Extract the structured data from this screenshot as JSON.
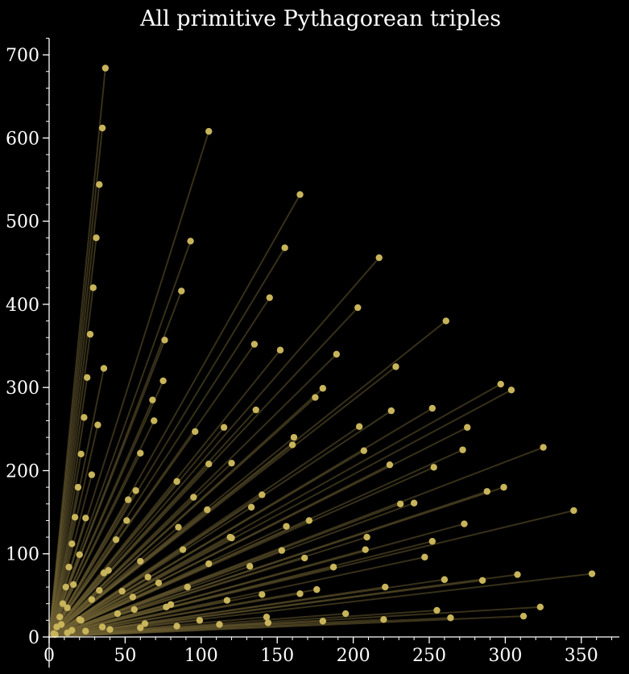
{
  "chart_data": {
    "type": "scatter",
    "title": "All primitive Pythagorean triples",
    "xlabel": "",
    "ylabel": "",
    "xlim": [
      0,
      375
    ],
    "ylim": [
      0,
      720
    ],
    "x_ticks": [
      0,
      50,
      100,
      150,
      200,
      250,
      300,
      350
    ],
    "y_ticks": [
      0,
      100,
      200,
      300,
      400,
      500,
      600,
      700
    ],
    "grid": false,
    "background": "#000000",
    "axis_color": "#ffffff",
    "point_color": "#c8b45a",
    "line_color": "#6e6032",
    "lines_from_origin": true,
    "points": [
      [
        3,
        4
      ],
      [
        4,
        3
      ],
      [
        5,
        12
      ],
      [
        12,
        5
      ],
      [
        8,
        15
      ],
      [
        15,
        8
      ],
      [
        7,
        24
      ],
      [
        24,
        7
      ],
      [
        20,
        21
      ],
      [
        21,
        20
      ],
      [
        9,
        40
      ],
      [
        40,
        9
      ],
      [
        12,
        35
      ],
      [
        35,
        12
      ],
      [
        11,
        60
      ],
      [
        60,
        11
      ],
      [
        28,
        45
      ],
      [
        45,
        28
      ],
      [
        33,
        56
      ],
      [
        56,
        33
      ],
      [
        13,
        84
      ],
      [
        84,
        13
      ],
      [
        16,
        63
      ],
      [
        63,
        16
      ],
      [
        48,
        55
      ],
      [
        55,
        48
      ],
      [
        39,
        80
      ],
      [
        80,
        39
      ],
      [
        36,
        77
      ],
      [
        77,
        36
      ],
      [
        65,
        72
      ],
      [
        72,
        65
      ],
      [
        20,
        99
      ],
      [
        99,
        20
      ],
      [
        60,
        91
      ],
      [
        91,
        60
      ],
      [
        15,
        112
      ],
      [
        112,
        15
      ],
      [
        44,
        117
      ],
      [
        117,
        44
      ],
      [
        88,
        105
      ],
      [
        105,
        88
      ],
      [
        17,
        144
      ],
      [
        144,
        17
      ],
      [
        24,
        143
      ],
      [
        143,
        24
      ],
      [
        51,
        140
      ],
      [
        140,
        51
      ],
      [
        85,
        132
      ],
      [
        132,
        85
      ],
      [
        119,
        120
      ],
      [
        120,
        119
      ],
      [
        52,
        165
      ],
      [
        165,
        52
      ],
      [
        19,
        180
      ],
      [
        180,
        19
      ],
      [
        57,
        176
      ],
      [
        176,
        57
      ],
      [
        104,
        153
      ],
      [
        153,
        104
      ],
      [
        95,
        168
      ],
      [
        168,
        95
      ],
      [
        28,
        195
      ],
      [
        195,
        28
      ],
      [
        84,
        187
      ],
      [
        187,
        84
      ],
      [
        133,
        156
      ],
      [
        156,
        133
      ],
      [
        21,
        220
      ],
      [
        220,
        21
      ],
      [
        140,
        171
      ],
      [
        171,
        140
      ],
      [
        60,
        221
      ],
      [
        221,
        60
      ],
      [
        105,
        208
      ],
      [
        208,
        105
      ],
      [
        120,
        209
      ],
      [
        209,
        120
      ],
      [
        32,
        255
      ],
      [
        255,
        32
      ],
      [
        23,
        264
      ],
      [
        264,
        23
      ],
      [
        96,
        247
      ],
      [
        247,
        96
      ],
      [
        69,
        260
      ],
      [
        260,
        69
      ],
      [
        115,
        252
      ],
      [
        252,
        115
      ],
      [
        160,
        231
      ],
      [
        231,
        160
      ],
      [
        161,
        240
      ],
      [
        240,
        161
      ],
      [
        68,
        285
      ],
      [
        285,
        68
      ],
      [
        136,
        273
      ],
      [
        273,
        136
      ],
      [
        207,
        224
      ],
      [
        224,
        207
      ],
      [
        25,
        312
      ],
      [
        312,
        25
      ],
      [
        75,
        308
      ],
      [
        308,
        75
      ],
      [
        204,
        253
      ],
      [
        253,
        204
      ],
      [
        36,
        323
      ],
      [
        323,
        36
      ],
      [
        175,
        288
      ],
      [
        288,
        175
      ],
      [
        180,
        299
      ],
      [
        299,
        180
      ],
      [
        225,
        272
      ],
      [
        272,
        225
      ],
      [
        27,
        364
      ],
      [
        76,
        357
      ],
      [
        357,
        76
      ],
      [
        135,
        352
      ],
      [
        152,
        345
      ],
      [
        345,
        152
      ],
      [
        189,
        340
      ],
      [
        228,
        325
      ],
      [
        325,
        228
      ],
      [
        252,
        275
      ],
      [
        275,
        252
      ],
      [
        29,
        420
      ],
      [
        304,
        297
      ],
      [
        297,
        304
      ],
      [
        31,
        480
      ],
      [
        33,
        544
      ],
      [
        35,
        612
      ],
      [
        37,
        684
      ],
      [
        87,
        416
      ],
      [
        93,
        476
      ],
      [
        105,
        608
      ],
      [
        145,
        408
      ],
      [
        155,
        468
      ],
      [
        165,
        532
      ],
      [
        203,
        396
      ],
      [
        217,
        456
      ],
      [
        261,
        380
      ]
    ]
  }
}
